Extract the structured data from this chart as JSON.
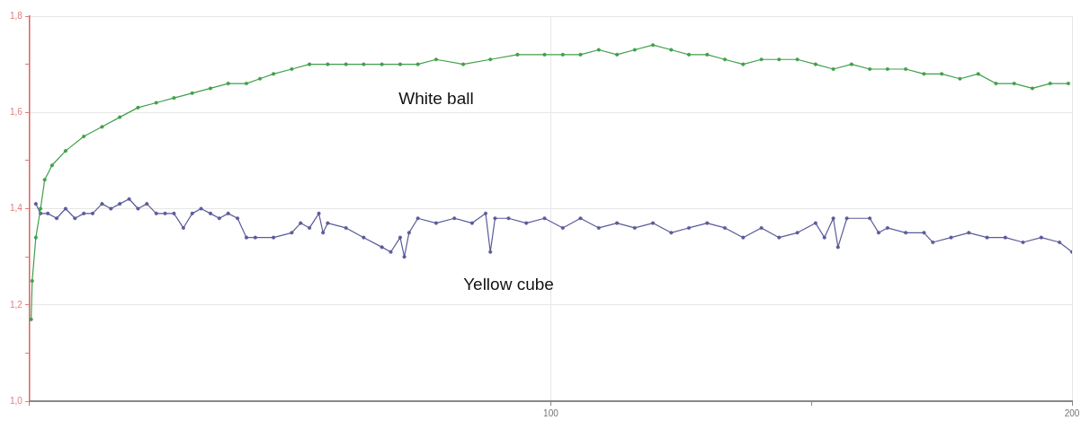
{
  "chart_data": {
    "type": "line",
    "xlim": [
      0,
      200
    ],
    "xticks": [
      {
        "value": 0,
        "label": null
      },
      100,
      {
        "value": 150,
        "label": null
      },
      200
    ],
    "ylim": [
      1.0,
      1.8
    ],
    "yticks": [
      {
        "value": 1.0,
        "label": "1,0"
      },
      {
        "value": 1.1,
        "label": null
      },
      {
        "value": 1.2,
        "label": "1,2"
      },
      {
        "value": 1.3,
        "label": null
      },
      {
        "value": 1.4,
        "label": "1,4"
      },
      {
        "value": 1.5,
        "label": null
      },
      {
        "value": 1.6,
        "label": "1,6"
      },
      {
        "value": 1.7,
        "label": null
      },
      {
        "value": 1.8,
        "label": "1,8"
      }
    ],
    "grid": true,
    "marker": "circle",
    "line_style": "solid",
    "legend": false,
    "series": [
      {
        "name": "White ball",
        "color": "#3f9f4a",
        "x": [
          0.3,
          0.5,
          1.2,
          2.1,
          2.9,
          4.3,
          6.9,
          10.4,
          13.9,
          17.3,
          20.8,
          24.3,
          27.7,
          31.2,
          34.7,
          38.1,
          41.6,
          44.2,
          46.8,
          50.3,
          53.7,
          57.2,
          60.7,
          64.1,
          67.6,
          71.1,
          74.5,
          78,
          83.2,
          88.4,
          93.6,
          98.8,
          102.3,
          105.7,
          109.2,
          112.7,
          116.1,
          119.6,
          123.1,
          126.5,
          130,
          133.4,
          136.9,
          140.4,
          143.8,
          147.3,
          150.8,
          154.2,
          157.7,
          161.2,
          164.6,
          168.1,
          171.6,
          175,
          178.5,
          182,
          185.4,
          188.9,
          192.4,
          195.8,
          199.3
        ],
        "values": [
          1.17,
          1.25,
          1.34,
          1.4,
          1.46,
          1.49,
          1.52,
          1.55,
          1.57,
          1.59,
          1.61,
          1.62,
          1.63,
          1.64,
          1.65,
          1.66,
          1.66,
          1.67,
          1.68,
          1.69,
          1.7,
          1.7,
          1.7,
          1.7,
          1.7,
          1.7,
          1.7,
          1.71,
          1.7,
          1.71,
          1.72,
          1.72,
          1.72,
          1.72,
          1.73,
          1.72,
          1.73,
          1.74,
          1.73,
          1.72,
          1.72,
          1.71,
          1.7,
          1.71,
          1.71,
          1.71,
          1.7,
          1.69,
          1.7,
          1.69,
          1.69,
          1.69,
          1.68,
          1.68,
          1.67,
          1.68,
          1.66,
          1.66,
          1.65,
          1.66,
          1.66
        ]
      },
      {
        "name": "Yellow cube",
        "color": "#5a5a9a",
        "x": [
          1.2,
          2.1,
          3.5,
          5.2,
          6.9,
          8.7,
          10.4,
          12.1,
          13.9,
          15.6,
          17.3,
          19.1,
          20.8,
          22.5,
          24.3,
          26,
          27.7,
          29.5,
          31.2,
          32.9,
          34.7,
          36.4,
          38.1,
          39.9,
          41.6,
          43.3,
          46.8,
          50.3,
          52,
          53.7,
          55.5,
          56.3,
          57.2,
          60.7,
          64.1,
          67.6,
          69.3,
          71.1,
          71.9,
          72.8,
          74.5,
          78,
          81.5,
          84.9,
          87.5,
          88.4,
          89.3,
          91.9,
          95.3,
          98.8,
          102.3,
          105.7,
          109.2,
          112.7,
          116.1,
          119.6,
          123.1,
          126.5,
          130,
          133.4,
          136.9,
          140.4,
          143.8,
          147.3,
          150.8,
          152.5,
          154.2,
          155.1,
          156.8,
          161.2,
          162.9,
          164.6,
          168.1,
          171.6,
          173.3,
          176.8,
          180.2,
          183.7,
          187.2,
          190.6,
          194.1,
          197.6,
          200
        ],
        "values": [
          1.41,
          1.39,
          1.39,
          1.38,
          1.4,
          1.38,
          1.39,
          1.39,
          1.41,
          1.4,
          1.41,
          1.42,
          1.4,
          1.41,
          1.39,
          1.39,
          1.39,
          1.36,
          1.39,
          1.4,
          1.39,
          1.38,
          1.39,
          1.38,
          1.34,
          1.34,
          1.34,
          1.35,
          1.37,
          1.36,
          1.39,
          1.35,
          1.37,
          1.36,
          1.34,
          1.32,
          1.31,
          1.34,
          1.3,
          1.35,
          1.38,
          1.37,
          1.38,
          1.37,
          1.39,
          1.31,
          1.38,
          1.38,
          1.37,
          1.38,
          1.36,
          1.38,
          1.36,
          1.37,
          1.36,
          1.37,
          1.35,
          1.36,
          1.37,
          1.36,
          1.34,
          1.36,
          1.34,
          1.35,
          1.37,
          1.34,
          1.38,
          1.32,
          1.38,
          1.38,
          1.35,
          1.36,
          1.35,
          1.35,
          1.33,
          1.34,
          1.35,
          1.34,
          1.34,
          1.33,
          1.34,
          1.33,
          1.31
        ]
      }
    ]
  }
}
